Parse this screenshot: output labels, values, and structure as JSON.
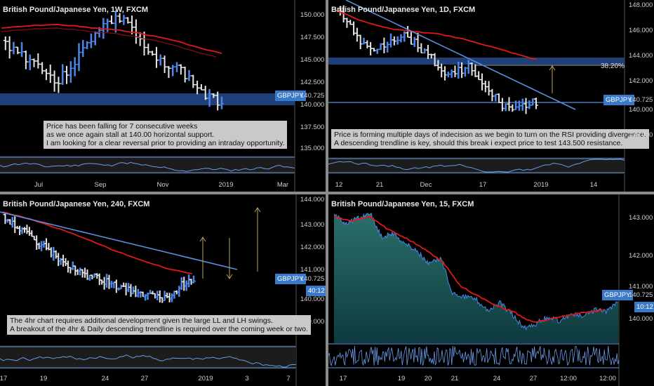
{
  "panels": [
    {
      "title": "British Pound/Japanese Yen, 1W, FXCM",
      "note": [
        "Price has been falling for 7 consecutive weeks",
        "as we once again stall at 140.00 horizontal support.",
        "I am looking for a clear reversal prior to providing an intraday opportunity."
      ],
      "symbol_tag": "GBPJPY",
      "price_tag": "140.725",
      "price_ticks": [
        "150.000",
        "147.500",
        "145.000",
        "142.500",
        "140.000",
        "137.500",
        "135.000"
      ],
      "x_ticks": [
        "Jul",
        "Sep",
        "Nov",
        "2019",
        "Mar"
      ]
    },
    {
      "title": "British Pound/Japanese Yen, 1D, FXCM",
      "note": [
        "Price is forming multiple days of indecision as we begin to turn on the RSI providing divergence.",
        "A descending trendline is key, should this break i expect price to test 143.500 resistance."
      ],
      "symbol_tag": "GBPJPY",
      "price_tag": "140.725",
      "fib_label": "38.20%",
      "price_ticks": [
        "148.000",
        "146.000",
        "144.000",
        "142.000",
        "140.000",
        "138.000"
      ],
      "x_ticks": [
        "12",
        "21",
        "Dec",
        "17",
        "2019",
        "14"
      ]
    },
    {
      "title": "British Pound/Japanese Yen, 240, FXCM",
      "note": [
        "The 4hr chart requires additional development given the large LL and LH swings.",
        "A breakout of the 4hr & Daily descending trendline is required over the coming week or two."
      ],
      "symbol_tag": "GBPJPY",
      "price_tag": "140.725",
      "countdown": "40:12",
      "price_ticks": [
        "144.000",
        "143.000",
        "142.000",
        "141.000",
        "140.000",
        "139.000"
      ],
      "x_ticks": [
        "17",
        "19",
        "24",
        "27",
        "2019",
        "3",
        "7"
      ]
    },
    {
      "title": "British Pound/Japanese Yen, 15, FXCM",
      "symbol_tag": "GBPJPY",
      "price_tag": "140.725",
      "countdown": "10:12",
      "price_ticks": [
        "143.000",
        "142.000",
        "141.000",
        "140.000"
      ],
      "x_ticks": [
        "17",
        "19",
        "20",
        "21",
        "24",
        "27",
        "12:00",
        "12:00"
      ]
    }
  ],
  "colors": {
    "bull": "#4a86e8",
    "bear": "#e6e6e6",
    "ma": "#e01818",
    "trend": "#5a8ee0",
    "zone": "#1f3f78",
    "area_top": "#2b6f6a",
    "area_bottom": "#0d3a3e",
    "rsi": "#6a9be8"
  },
  "chart_data": [
    {
      "type": "bar",
      "timeframe": "1W",
      "ylim": [
        133,
        152
      ],
      "support_zone": [
        139.7,
        141.0
      ],
      "last": 140.725
    },
    {
      "type": "bar",
      "timeframe": "1D",
      "ylim": [
        136,
        148.5
      ],
      "fib_level": 143.3,
      "last": 140.725
    },
    {
      "type": "bar",
      "timeframe": "240",
      "ylim": [
        138.2,
        144.2
      ],
      "last": 140.725
    },
    {
      "type": "area",
      "timeframe": "15",
      "ylim": [
        139.3,
        143.6
      ],
      "last": 140.725
    }
  ]
}
